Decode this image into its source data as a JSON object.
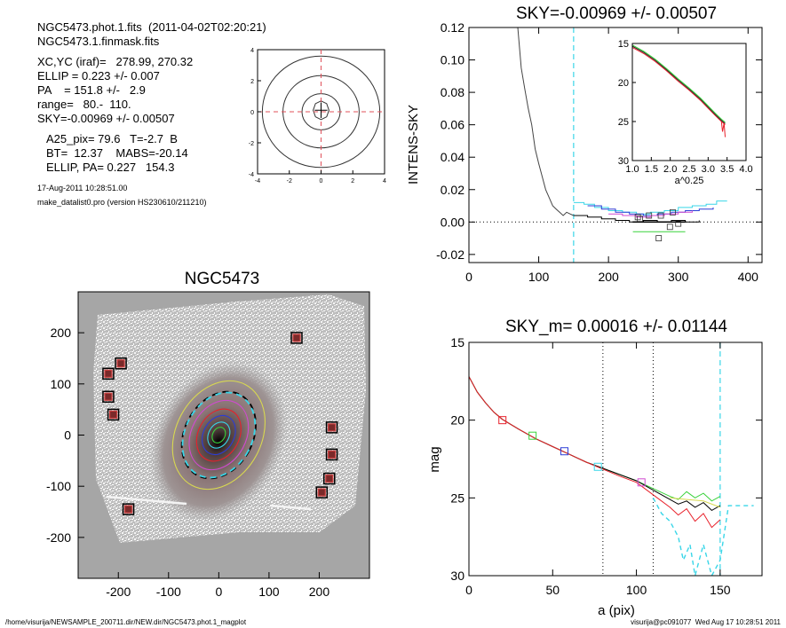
{
  "header": {
    "line1": "NGC5473.phot.1.fits  (2011-04-02T02:20:21)",
    "line2": "NGC5473.1.finmask.fits",
    "line3": "XC,YC (iraf)=   278.99, 270.32",
    "line4": "ELLIP = 0.223 +/- 0.007",
    "line5": "PA    = 151.8 +/-   2.9",
    "line6": "range=   80.-  110.",
    "line7": "SKY=-0.00969 +/- 0.00507",
    "line8": "A25_pix= 79.6   T=-2.7  B",
    "line9": "BT=  12.37    MABS=-20.14",
    "line10": "ELLIP, PA= 0.227   154.3",
    "date": "17-Aug-2011 10:28:51.00",
    "program": "make_datalist0.pro (version HS230610/211210)"
  },
  "footer": {
    "left": "/home/visurija/NEWSAMPLE_200711.dir/NEW.dir/NGC5473.phot.1_magplot",
    "right": "visurija@pc091077  Wed Aug 17 10:28:51 2011"
  },
  "colors": {
    "black": "#000000",
    "red": "#e8202a",
    "green": "#39d23a",
    "blue": "#2b3cd6",
    "cyan": "#39d6e8",
    "magenta": "#d04ad0",
    "yellow": "#d8d850",
    "dashred": "#e0505a"
  },
  "chart_data": [
    {
      "type": "contour",
      "title": "",
      "xlim": [
        -4,
        4
      ],
      "ylim": [
        -4,
        4
      ],
      "xticks": [
        "-4",
        "-2",
        "0",
        "2",
        "4"
      ],
      "yticks": [
        "-4",
        "-2",
        "0",
        "2",
        "4"
      ],
      "contour_radii": [
        3.7,
        2.4,
        1.2,
        0.5
      ]
    },
    {
      "type": "line",
      "title": "SKY=-0.00969 +/- 0.00507",
      "xlabel": "",
      "ylabel": "INTENS-SKY",
      "xlim": [
        0,
        420
      ],
      "ylim": [
        -0.025,
        0.12
      ],
      "xticks": [
        "0",
        "100",
        "200",
        "300",
        "400"
      ],
      "yticks": [
        "-0.02",
        "0.00",
        "0.02",
        "0.04",
        "0.06",
        "0.08",
        "0.10",
        "0.12"
      ],
      "vline_x": 150,
      "profile": [
        [
          70,
          0.12
        ],
        [
          75,
          0.095
        ],
        [
          80,
          0.082
        ],
        [
          85,
          0.07
        ],
        [
          90,
          0.06
        ],
        [
          95,
          0.045
        ],
        [
          100,
          0.036
        ],
        [
          105,
          0.028
        ],
        [
          110,
          0.02
        ],
        [
          115,
          0.015
        ],
        [
          120,
          0.01
        ],
        [
          125,
          0.008
        ],
        [
          130,
          0.006
        ],
        [
          135,
          0.004
        ],
        [
          140,
          0.006
        ],
        [
          145,
          0.005
        ],
        [
          150,
          0.004
        ]
      ],
      "steps_black": [
        [
          150,
          0.004
        ],
        [
          170,
          0.003
        ],
        [
          190,
          0.002
        ],
        [
          210,
          0.001
        ],
        [
          230,
          0.0
        ],
        [
          250,
          0.001
        ],
        [
          270,
          0.0
        ],
        [
          290,
          0.001
        ],
        [
          310,
          0.0
        ],
        [
          330,
          0.001
        ]
      ],
      "steps_cyan": [
        [
          150,
          0.012
        ],
        [
          165,
          0.011
        ],
        [
          180,
          0.009
        ],
        [
          200,
          0.007
        ],
        [
          220,
          0.006
        ],
        [
          240,
          0.005
        ],
        [
          260,
          0.006
        ],
        [
          280,
          0.007
        ],
        [
          300,
          0.009
        ],
        [
          320,
          0.01
        ],
        [
          340,
          0.011
        ],
        [
          355,
          0.013
        ],
        [
          370,
          0.013
        ]
      ],
      "steps_blue": [
        [
          170,
          0.01
        ],
        [
          190,
          0.008
        ],
        [
          210,
          0.006
        ],
        [
          230,
          0.005
        ],
        [
          250,
          0.004
        ],
        [
          270,
          0.005
        ],
        [
          290,
          0.006
        ],
        [
          310,
          0.007
        ],
        [
          330,
          0.008
        ],
        [
          350,
          0.009
        ]
      ],
      "steps_magenta": [
        [
          200,
          0.005
        ],
        [
          220,
          0.004
        ],
        [
          240,
          0.003
        ],
        [
          260,
          0.004
        ],
        [
          280,
          0.005
        ],
        [
          300,
          0.006
        ],
        [
          320,
          0.007
        ]
      ],
      "hline_green": [
        [
          235,
          -0.006
        ],
        [
          310,
          -0.006
        ]
      ],
      "hline_black": [
        [
          235,
          0.0
        ],
        [
          310,
          0.0
        ]
      ],
      "squares": [
        [
          242,
          0.003
        ],
        [
          258,
          0.004
        ],
        [
          275,
          0.004
        ],
        [
          292,
          0.006
        ],
        [
          300,
          -0.001
        ],
        [
          288,
          -0.003
        ],
        [
          272,
          -0.01
        ],
        [
          245,
          0.002
        ]
      ],
      "inset": {
        "xlabel": "a^0.25",
        "xlim": [
          1.0,
          4.0
        ],
        "ylim": [
          30,
          15
        ],
        "xticks": [
          "1.0",
          "1.5",
          "2.0",
          "2.5",
          "3.0",
          "3.5",
          "4.0"
        ],
        "yticks": [
          "15",
          "20",
          "25",
          "30"
        ],
        "curve": [
          [
            1.0,
            15.5
          ],
          [
            1.3,
            16.3
          ],
          [
            1.6,
            17.3
          ],
          [
            1.9,
            18.5
          ],
          [
            2.2,
            19.8
          ],
          [
            2.5,
            21.0
          ],
          [
            2.8,
            22.3
          ],
          [
            3.0,
            23.3
          ],
          [
            3.2,
            24.3
          ],
          [
            3.35,
            25.0
          ],
          [
            3.45,
            25.4
          ]
        ]
      }
    },
    {
      "type": "image",
      "title": "NGC5473",
      "xlim": [
        -280,
        300
      ],
      "ylim": [
        -280,
        280
      ],
      "xticks": [
        "-200",
        "-100",
        "0",
        "100",
        "200"
      ],
      "yticks": [
        "-200",
        "-100",
        "0",
        "100",
        "200"
      ],
      "ellipses": [
        {
          "color": "red",
          "a": 60,
          "b": 45
        },
        {
          "color": "blue",
          "a": 45,
          "b": 34
        },
        {
          "color": "cyan",
          "a": 30,
          "b": 22
        },
        {
          "color": "green",
          "a": 18,
          "b": 13
        },
        {
          "color": "black",
          "a": 100,
          "b": 78,
          "dashed": true
        },
        {
          "color": "cyan",
          "a": 98,
          "b": 76,
          "dashed": true
        },
        {
          "color": "yellow",
          "a": 125,
          "b": 98
        },
        {
          "color": "magenta",
          "a": 80,
          "b": 62
        }
      ],
      "stars": [
        [
          -220,
          120
        ],
        [
          -195,
          140
        ],
        [
          -220,
          75
        ],
        [
          -210,
          40
        ],
        [
          155,
          190
        ],
        [
          225,
          15
        ],
        [
          225,
          -38
        ],
        [
          220,
          -85
        ],
        [
          205,
          -112
        ],
        [
          -180,
          -145
        ]
      ]
    },
    {
      "type": "line",
      "title": "SKY_m=  0.00016 +/- 0.01144",
      "xlabel": "a (pix)",
      "ylabel": "mag",
      "xlim": [
        0,
        175
      ],
      "ylim": [
        30,
        15
      ],
      "xticks": [
        "0",
        "50",
        "100",
        "150"
      ],
      "yticks": [
        "15",
        "20",
        "25",
        "30"
      ],
      "vlines_dotted": [
        80,
        110
      ],
      "vline_dashed": 150,
      "series": [
        {
          "color": "green",
          "points": [
            [
              0,
              17.2
            ],
            [
              5,
              18.2
            ],
            [
              10,
              18.9
            ],
            [
              15,
              19.5
            ],
            [
              20,
              19.95
            ],
            [
              30,
              20.6
            ],
            [
              40,
              21.2
            ],
            [
              50,
              21.7
            ],
            [
              60,
              22.2
            ],
            [
              70,
              22.7
            ],
            [
              80,
              23.1
            ],
            [
              90,
              23.5
            ],
            [
              100,
              23.9
            ],
            [
              110,
              24.4
            ],
            [
              120,
              24.9
            ],
            [
              125,
              25.1
            ],
            [
              130,
              24.6
            ],
            [
              135,
              25.0
            ],
            [
              140,
              24.7
            ],
            [
              145,
              25.2
            ],
            [
              150,
              24.9
            ]
          ]
        },
        {
          "color": "black",
          "points": [
            [
              0,
              17.2
            ],
            [
              5,
              18.2
            ],
            [
              10,
              18.9
            ],
            [
              15,
              19.5
            ],
            [
              20,
              19.95
            ],
            [
              30,
              20.6
            ],
            [
              40,
              21.2
            ],
            [
              50,
              21.7
            ],
            [
              60,
              22.2
            ],
            [
              70,
              22.7
            ],
            [
              80,
              23.1
            ],
            [
              90,
              23.5
            ],
            [
              100,
              23.9
            ],
            [
              110,
              24.5
            ],
            [
              120,
              25.1
            ],
            [
              125,
              25.4
            ],
            [
              130,
              25.2
            ],
            [
              135,
              25.6
            ],
            [
              140,
              25.3
            ],
            [
              145,
              25.8
            ],
            [
              150,
              25.5
            ]
          ]
        },
        {
          "color": "red",
          "points": [
            [
              0,
              17.2
            ],
            [
              5,
              18.2
            ],
            [
              10,
              18.9
            ],
            [
              15,
              19.5
            ],
            [
              20,
              19.95
            ],
            [
              30,
              20.6
            ],
            [
              40,
              21.2
            ],
            [
              50,
              21.7
            ],
            [
              60,
              22.2
            ],
            [
              70,
              22.7
            ],
            [
              80,
              23.15
            ],
            [
              90,
              23.6
            ],
            [
              100,
              24.0
            ],
            [
              110,
              24.8
            ],
            [
              120,
              25.6
            ],
            [
              125,
              26.1
            ],
            [
              130,
              25.7
            ],
            [
              135,
              26.5
            ],
            [
              140,
              26.0
            ],
            [
              145,
              26.9
            ],
            [
              150,
              26.4
            ]
          ]
        },
        {
          "color": "yellow",
          "points": [
            [
              120,
              25.0
            ],
            [
              130,
              25.1
            ],
            [
              140,
              25.2
            ],
            [
              150,
              25.6
            ]
          ]
        },
        {
          "color": "cyan",
          "points": [
            [
              110,
              25.0
            ],
            [
              115,
              26.0
            ],
            [
              120,
              26.5
            ],
            [
              125,
              27.5
            ],
            [
              128,
              29.0
            ],
            [
              132,
              28.0
            ],
            [
              135,
              30.0
            ],
            [
              140,
              28.0
            ],
            [
              145,
              30.0
            ],
            [
              150,
              29.0
            ],
            [
              155,
              25.5
            ],
            [
              170,
              25.5
            ]
          ],
          "dashed": true
        }
      ],
      "squares": [
        {
          "color": "red",
          "x": 20,
          "y": 20.0
        },
        {
          "color": "green",
          "x": 38,
          "y": 21.0
        },
        {
          "color": "blue",
          "x": 57,
          "y": 22.0
        },
        {
          "color": "cyan",
          "x": 77,
          "y": 23.0
        },
        {
          "color": "magenta",
          "x": 103,
          "y": 24.0
        }
      ]
    }
  ]
}
